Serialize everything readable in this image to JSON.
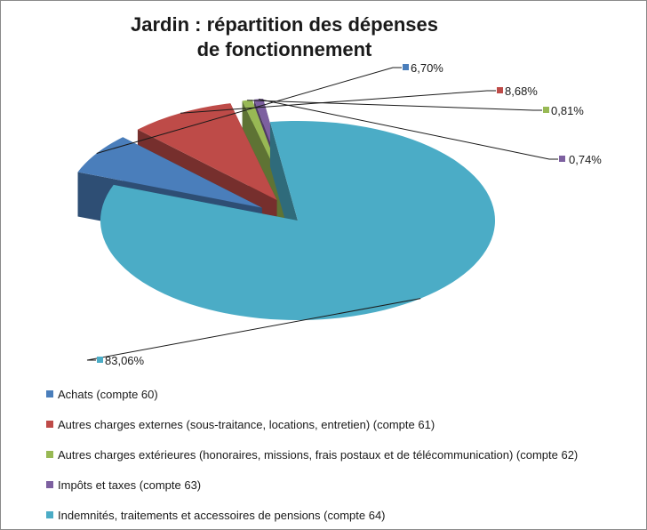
{
  "chart_data": {
    "type": "pie",
    "title_lines": [
      "Jardin : répartition des dépenses",
      "de fonctionnement"
    ],
    "slices": [
      {
        "label": "Achats (compte 60)",
        "value": 6.7,
        "value_label": "6,70%",
        "color": "#4a7ebb"
      },
      {
        "label": "Autres charges externes (sous-traitance, locations, entretien) (compte 61)",
        "value": 8.68,
        "value_label": "8,68%",
        "color": "#be4b48"
      },
      {
        "label": "Autres charges extérieures (honoraires, missions, frais postaux et de télécommunication) (compte 62)",
        "value": 0.81,
        "value_label": "0,81%",
        "color": "#98b954"
      },
      {
        "label": "Impôts et taxes (compte 63)",
        "value": 0.74,
        "value_label": "0,74%",
        "color": "#7d60a0"
      },
      {
        "label": "Indemnités, traitements et accessoires de pensions (compte 64)",
        "value": 83.06,
        "value_label": "83,06%",
        "color": "#4bacc6"
      }
    ],
    "legend_position": "bottom-left",
    "style": "3d-exploded"
  }
}
